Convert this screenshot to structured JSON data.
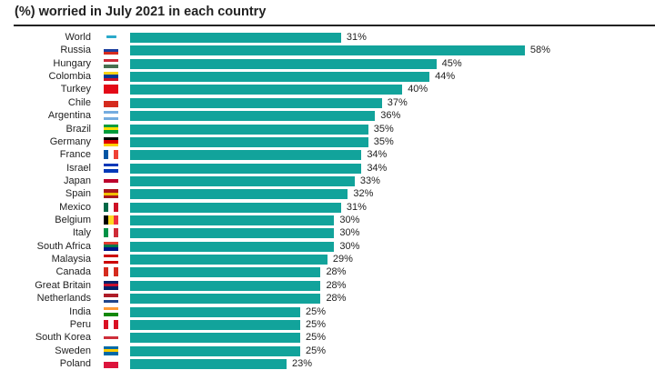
{
  "chart_data": {
    "type": "bar",
    "orientation": "horizontal",
    "title": "(%) worried in July 2021 in each country",
    "xlim": [
      0,
      100
    ],
    "bar_color": "#12a39b",
    "categories": [
      "World",
      "Russia",
      "Hungary",
      "Colombia",
      "Turkey",
      "Chile",
      "Argentina",
      "Brazil",
      "Germany",
      "France",
      "Israel",
      "Japan",
      "Spain",
      "Mexico",
      "Belgium",
      "Italy",
      "South Africa",
      "Malaysia",
      "Canada",
      "Great Britain",
      "Netherlands",
      "India",
      "Peru",
      "South Korea",
      "Sweden",
      "Poland"
    ],
    "values": [
      31,
      58,
      45,
      44,
      40,
      37,
      36,
      35,
      35,
      34,
      34,
      33,
      32,
      31,
      30,
      30,
      30,
      29,
      28,
      28,
      28,
      25,
      25,
      25,
      25,
      23
    ],
    "value_labels": [
      "31%",
      "58%",
      "45%",
      "44%",
      "40%",
      "37%",
      "36%",
      "35%",
      "35%",
      "34%",
      "34%",
      "33%",
      "32%",
      "31%",
      "30%",
      "30%",
      "30%",
      "29%",
      "28%",
      "28%",
      "28%",
      "25%",
      "25%",
      "25%",
      "25%",
      "23%"
    ],
    "flags": [
      {
        "dir": "h",
        "colors": [
          "#ffffff",
          "#2aa9c9",
          "#ffffff"
        ]
      },
      {
        "dir": "h",
        "colors": [
          "#ffffff",
          "#1c3f9e",
          "#d52b1e"
        ]
      },
      {
        "dir": "h",
        "colors": [
          "#ce2939",
          "#ffffff",
          "#477050"
        ]
      },
      {
        "dir": "h",
        "colors": [
          "#fcd116",
          "#003893",
          "#ce1126"
        ]
      },
      {
        "dir": "h",
        "colors": [
          "#e30a17",
          "#e30a17",
          "#e30a17"
        ]
      },
      {
        "dir": "h",
        "colors": [
          "#ffffff",
          "#d52b1e",
          "#d52b1e"
        ]
      },
      {
        "dir": "h",
        "colors": [
          "#74acdf",
          "#ffffff",
          "#74acdf"
        ]
      },
      {
        "dir": "h",
        "colors": [
          "#009c3b",
          "#ffdf00",
          "#009c3b"
        ]
      },
      {
        "dir": "h",
        "colors": [
          "#000000",
          "#dd0000",
          "#ffce00"
        ]
      },
      {
        "dir": "v",
        "colors": [
          "#0055a4",
          "#ffffff",
          "#ef4135"
        ]
      },
      {
        "dir": "h",
        "colors": [
          "#0038b8",
          "#ffffff",
          "#0038b8"
        ]
      },
      {
        "dir": "h",
        "colors": [
          "#ffffff",
          "#bc002d",
          "#ffffff"
        ]
      },
      {
        "dir": "h",
        "colors": [
          "#aa151b",
          "#f1bf00",
          "#aa151b"
        ]
      },
      {
        "dir": "v",
        "colors": [
          "#006847",
          "#ffffff",
          "#ce1126"
        ]
      },
      {
        "dir": "v",
        "colors": [
          "#000000",
          "#fdda24",
          "#ef3340"
        ]
      },
      {
        "dir": "v",
        "colors": [
          "#009246",
          "#ffffff",
          "#ce2b37"
        ]
      },
      {
        "dir": "h",
        "colors": [
          "#e03c31",
          "#007749",
          "#001489"
        ]
      },
      {
        "dir": "h",
        "colors": [
          "#cc0001",
          "#ffffff",
          "#cc0001"
        ]
      },
      {
        "dir": "v",
        "colors": [
          "#d52b1e",
          "#ffffff",
          "#d52b1e"
        ]
      },
      {
        "dir": "h",
        "colors": [
          "#012169",
          "#c8102e",
          "#012169"
        ]
      },
      {
        "dir": "h",
        "colors": [
          "#ae1c28",
          "#ffffff",
          "#21468b"
        ]
      },
      {
        "dir": "h",
        "colors": [
          "#ff9933",
          "#ffffff",
          "#138808"
        ]
      },
      {
        "dir": "v",
        "colors": [
          "#d91023",
          "#ffffff",
          "#d91023"
        ]
      },
      {
        "dir": "h",
        "colors": [
          "#ffffff",
          "#cd2e3a",
          "#ffffff"
        ]
      },
      {
        "dir": "h",
        "colors": [
          "#006aa7",
          "#fecc00",
          "#006aa7"
        ]
      },
      {
        "dir": "h",
        "colors": [
          "#ffffff",
          "#dc143c",
          "#dc143c"
        ]
      }
    ]
  }
}
